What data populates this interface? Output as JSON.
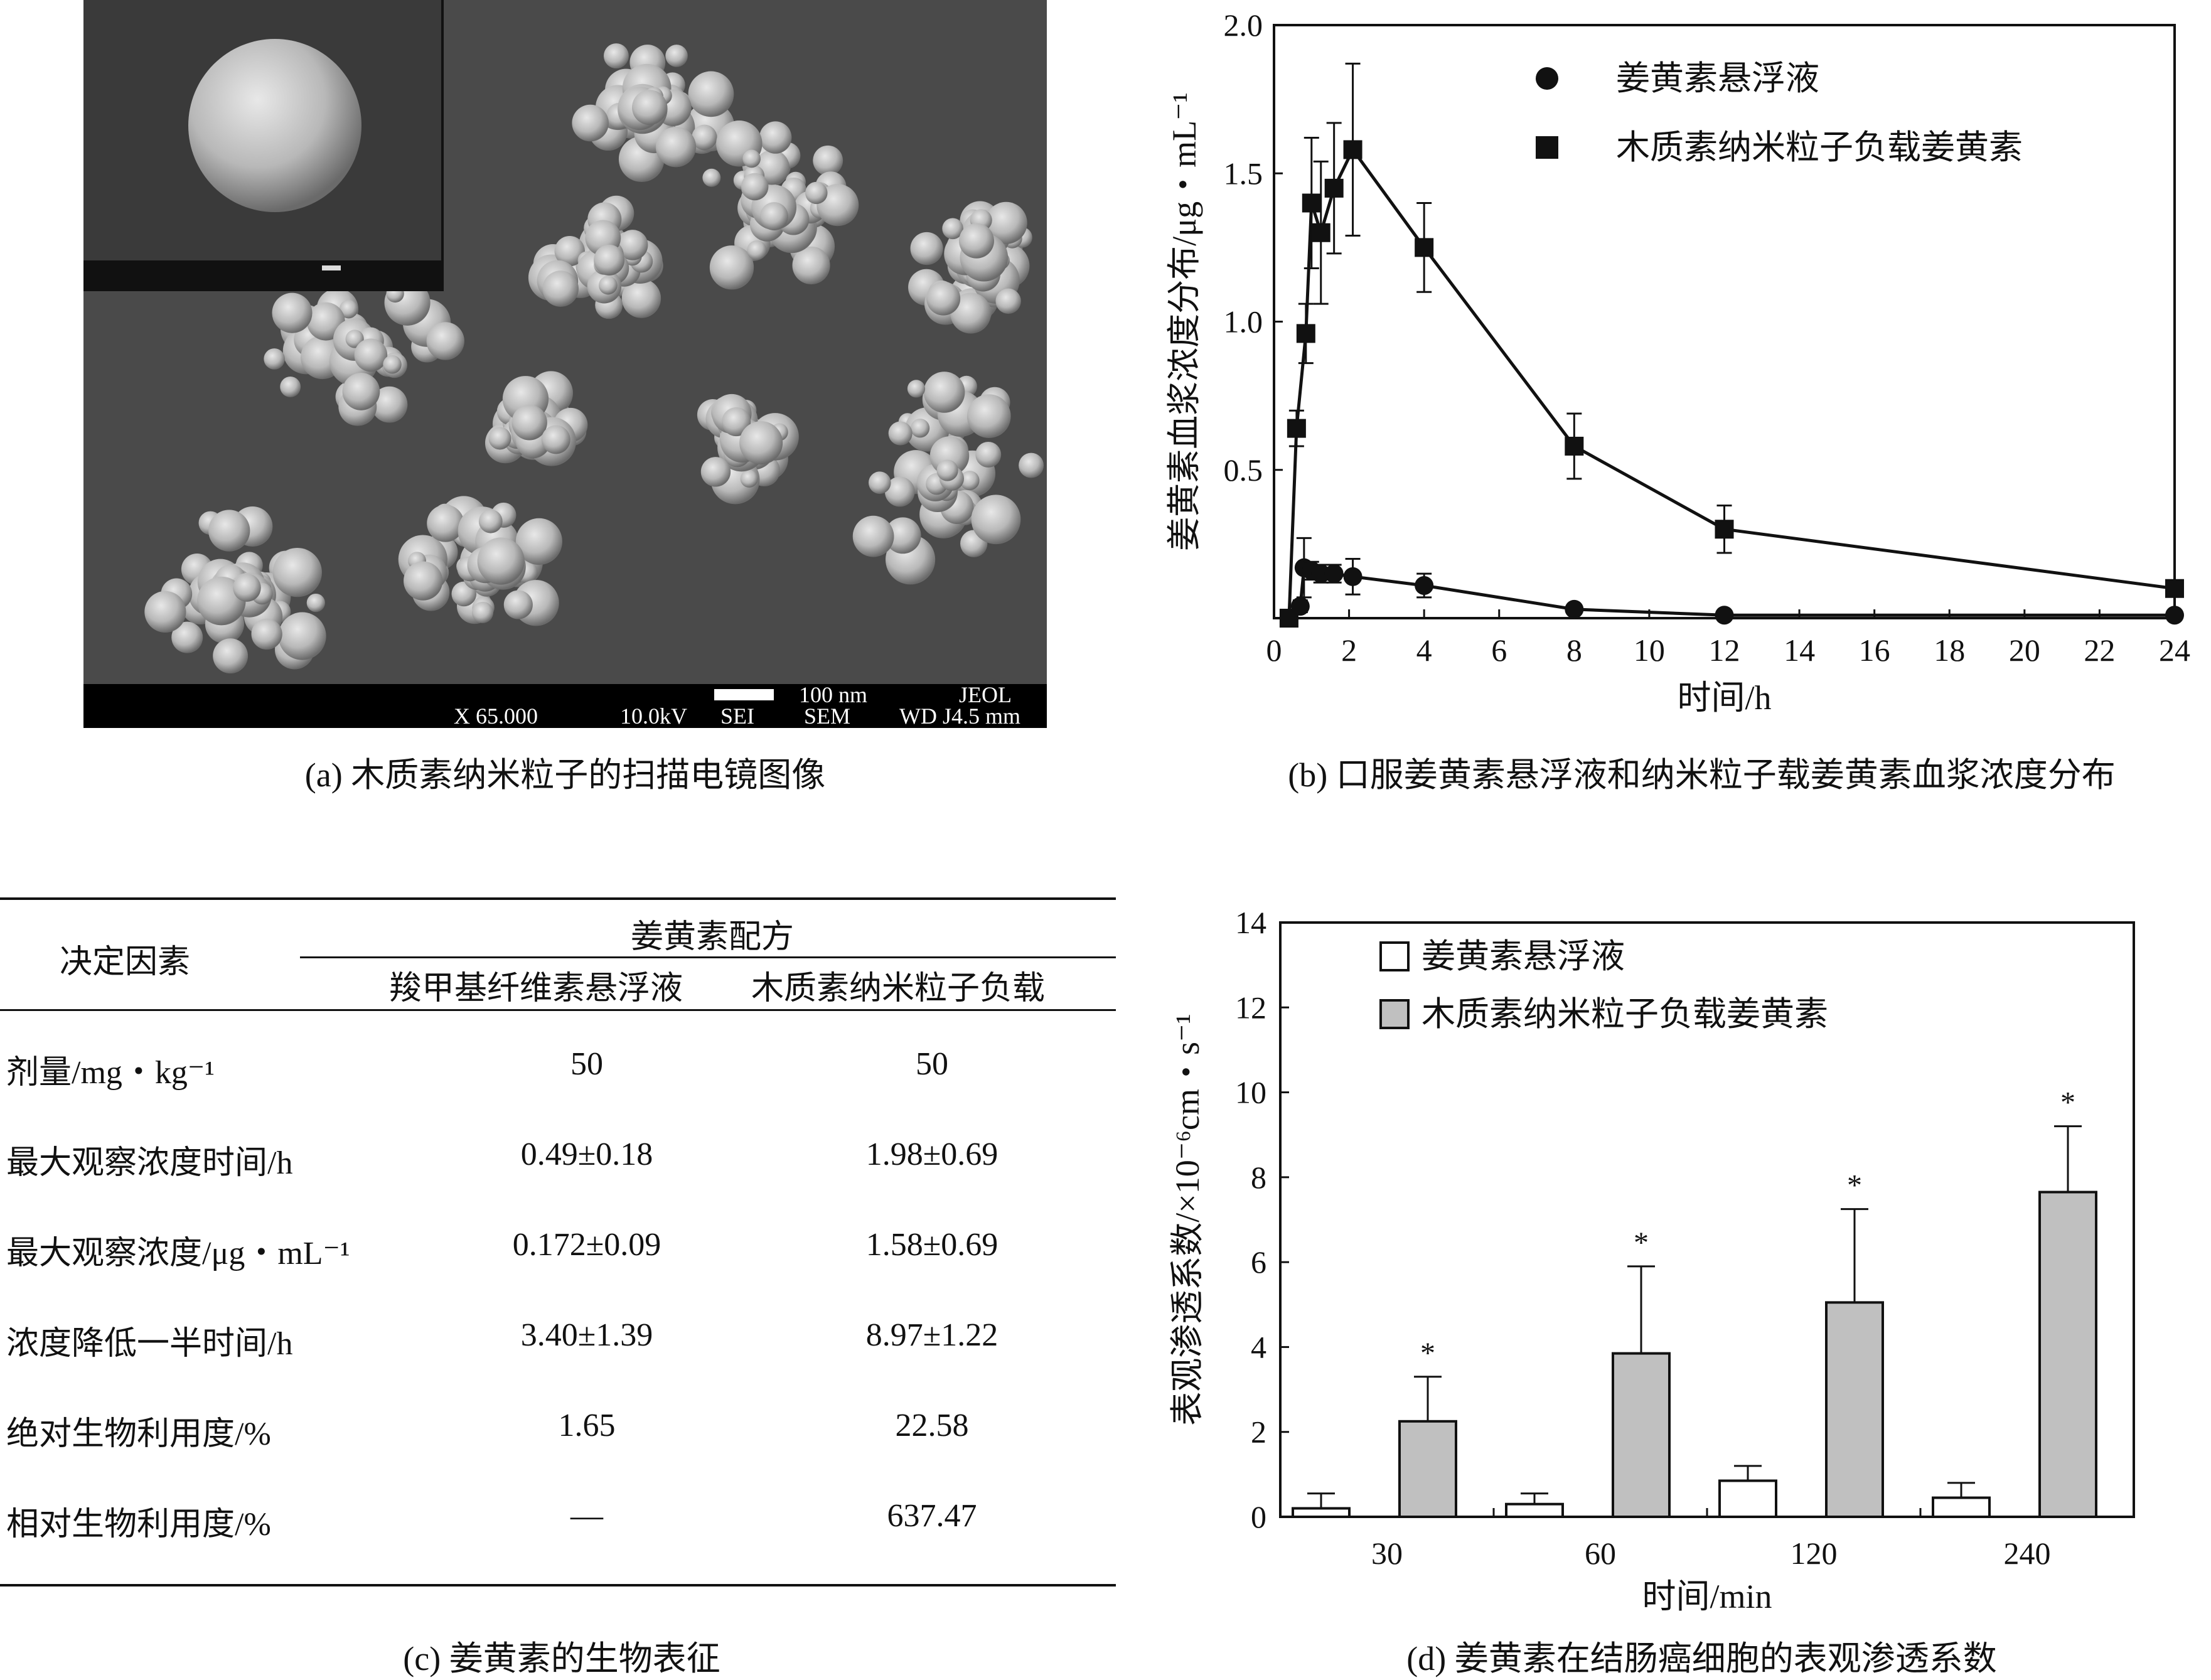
{
  "captions": {
    "a": "(a) 木质素纳米粒子的扫描电镜图像",
    "b": "(b) 口服姜黄素悬浮液和纳米粒子载姜黄素血浆浓度分布",
    "c": "(c) 姜黄素的生物表征",
    "d": "(d) 姜黄素在结肠癌细胞的表观渗透系数"
  },
  "sem": {
    "scale": "100 nm",
    "brand": "JEOL",
    "mag": "X 65.000",
    "kv": "10.0kV",
    "sei": "SEI",
    "sem": "SEM",
    "wd": "WD J4.5 mm"
  },
  "table": {
    "factor_header": "决定因素",
    "formula_header": "姜黄素配方",
    "col1": "羧甲基纤维素悬浮液",
    "col2": "木质素纳米粒子负载",
    "rows": [
      {
        "label": "剂量/mg・kg⁻¹",
        "a": "50",
        "b": "50"
      },
      {
        "label": "最大观察浓度时间/h",
        "a": "0.49±0.18",
        "b": "1.98±0.69"
      },
      {
        "label": "最大观察浓度/μg・mL⁻¹",
        "a": "0.172±0.09",
        "b": "1.58±0.69"
      },
      {
        "label": "浓度降低一半时间/h",
        "a": "3.40±1.39",
        "b": "8.97±1.22"
      },
      {
        "label": "绝对生物利用度/%",
        "a": "1.65",
        "b": "22.58"
      },
      {
        "label": "相对生物利用度/%",
        "a": "—",
        "b": "637.47"
      }
    ]
  },
  "chart_data": [
    {
      "type": "line",
      "xlabel": "时间/h",
      "ylabel": "姜黄素血浆浓度分布/μg・mL⁻¹",
      "xlim": [
        0,
        24
      ],
      "ylim": [
        0,
        2.0
      ],
      "xticks": [
        "0",
        "2",
        "4",
        "6",
        "8",
        "10",
        "12",
        "14",
        "16",
        "18",
        "20",
        "22",
        "24"
      ],
      "yticks": [
        "0.5",
        "1.0",
        "1.5",
        "2.0"
      ],
      "legend_position": "top-right",
      "series": [
        {
          "name": "姜黄素悬浮液",
          "marker": "circle",
          "x": [
            0.4,
            0.7,
            0.8,
            1.0,
            1.25,
            1.6,
            2.1,
            4.0,
            8.0,
            12.0,
            24.0
          ],
          "y": [
            0.0,
            0.04,
            0.17,
            0.16,
            0.15,
            0.15,
            0.14,
            0.11,
            0.03,
            0.01,
            0.01
          ],
          "err": [
            0.0,
            0.02,
            0.1,
            0.03,
            0.03,
            0.03,
            0.06,
            0.04,
            0.01,
            0.0,
            0.0
          ]
        },
        {
          "name": "木质素纳米粒子负载姜黄素",
          "marker": "square",
          "x": [
            0.4,
            0.6,
            0.85,
            1.0,
            1.25,
            1.6,
            2.1,
            4.0,
            8.0,
            12.0,
            24.0
          ],
          "y": [
            0.0,
            0.64,
            0.96,
            1.4,
            1.3,
            1.45,
            1.58,
            1.25,
            0.58,
            0.3,
            0.1
          ],
          "err": [
            0.0,
            0.06,
            0.1,
            0.22,
            0.24,
            0.22,
            0.29,
            0.15,
            0.11,
            0.08,
            0.0
          ]
        }
      ]
    },
    {
      "type": "bar",
      "xlabel": "时间/min",
      "ylabel": "表观渗透系数/×10⁻⁶cm・s⁻¹",
      "categories": [
        "30",
        "60",
        "120",
        "240"
      ],
      "ylim": [
        0,
        14
      ],
      "yticks": [
        "0",
        "2",
        "4",
        "6",
        "8",
        "10",
        "12",
        "14"
      ],
      "legend_position": "top-left",
      "series": [
        {
          "name": "姜黄素悬浮液",
          "color": "#ffffff",
          "values": [
            0.2,
            0.3,
            0.85,
            0.45
          ],
          "err": [
            0.35,
            0.25,
            0.35,
            0.35
          ]
        },
        {
          "name": "木质素纳米粒子负载姜黄素",
          "color": "#c0c0c0",
          "values": [
            2.25,
            3.85,
            5.05,
            7.65
          ],
          "err": [
            1.05,
            2.05,
            2.2,
            1.55
          ]
        }
      ],
      "annotations": [
        "*",
        "*",
        "*",
        "*"
      ]
    }
  ]
}
